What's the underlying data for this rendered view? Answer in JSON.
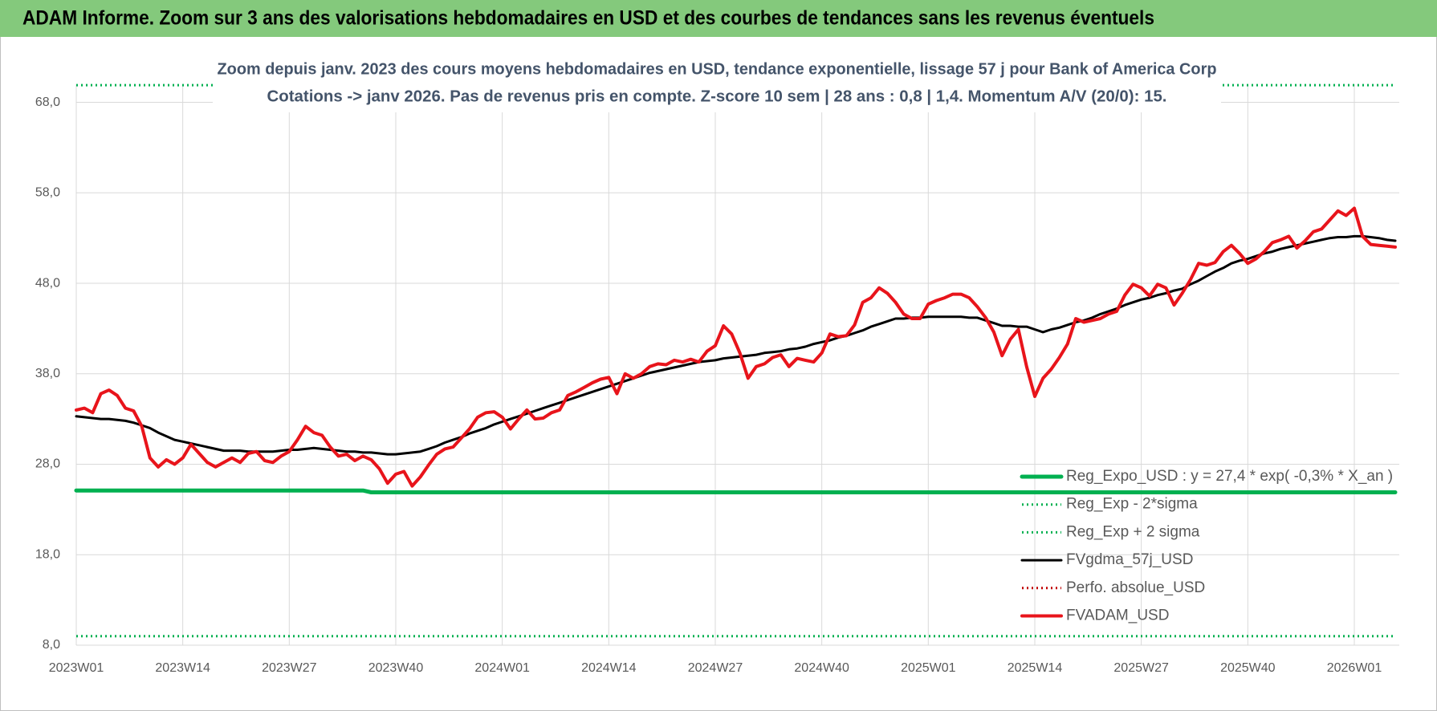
{
  "chart_data": {
    "type": "line",
    "title": "ADAM Informe. Zoom sur 3 ans des valorisations hebdomadaires en USD et des courbes de tendances sans les revenus éventuels",
    "subtitle": [
      "Zoom depuis janv. 2023 des cours moyens hebdomadaires en USD, tendance exponentielle, lissage 57 j pour Bank of America Corp",
      "Cotations -> janv 2026. Pas de revenus pris en compte. Z-score 10 sem  | 28 ans : 0,8 | 1,4. Momentum A/V (20/0): 15."
    ],
    "categories": [
      "2023W01",
      null,
      null,
      null,
      null,
      null,
      null,
      null,
      null,
      null,
      null,
      null,
      null,
      "2023W14",
      null,
      null,
      null,
      null,
      null,
      null,
      null,
      null,
      null,
      null,
      null,
      null,
      "2023W27",
      null,
      null,
      null,
      null,
      null,
      null,
      null,
      null,
      null,
      null,
      null,
      null,
      "2023W40",
      null,
      null,
      null,
      null,
      null,
      null,
      null,
      null,
      null,
      null,
      null,
      null,
      "2024W01",
      null,
      null,
      null,
      null,
      null,
      null,
      null,
      null,
      null,
      null,
      null,
      null,
      "2024W14",
      null,
      null,
      null,
      null,
      null,
      null,
      null,
      null,
      null,
      null,
      null,
      null,
      "2024W27",
      null,
      null,
      null,
      null,
      null,
      null,
      null,
      null,
      null,
      null,
      null,
      null,
      "2024W40",
      null,
      null,
      null,
      null,
      null,
      null,
      null,
      null,
      null,
      null,
      null,
      null,
      "2025W01",
      null,
      null,
      null,
      null,
      null,
      null,
      null,
      null,
      null,
      null,
      null,
      null,
      "2025W14",
      null,
      null,
      null,
      null,
      null,
      null,
      null,
      null,
      null,
      null,
      null,
      null,
      "2025W27",
      null,
      null,
      null,
      null,
      null,
      null,
      null,
      null,
      null,
      null,
      null,
      null,
      "2025W40",
      null,
      null,
      null,
      null,
      null,
      null,
      null,
      null,
      null,
      null,
      null,
      null,
      "2026W01",
      null,
      null,
      null,
      null,
      null
    ],
    "ylim": [
      8,
      70
    ],
    "yticks": [
      {
        "value": 8,
        "label": "8,0"
      },
      {
        "value": 18,
        "label": "18,0"
      },
      {
        "value": 28,
        "label": "28,0"
      },
      {
        "value": 38,
        "label": "38,0"
      },
      {
        "value": 48,
        "label": "48,0"
      },
      {
        "value": 58,
        "label": "58,0"
      },
      {
        "value": 68,
        "label": "68,0"
      }
    ],
    "grid": true,
    "legend": "bottom-right",
    "series": [
      {
        "name": "Reg_Expo_USD : y = 27,4 * exp( -0,3% *  X_an )",
        "color": "#00b050",
        "style": "solid",
        "width": 5,
        "values": [
          25.1,
          25.1,
          25.1,
          25.1,
          25.1,
          25.1,
          25.1,
          25.1,
          25.1,
          25.1,
          25.1,
          25.1,
          25.1,
          25.1,
          25.1,
          25.1,
          25.1,
          25.1,
          25.1,
          25.1,
          25.1,
          25.1,
          25.1,
          25.1,
          25.1,
          25.1,
          25.1,
          25.1,
          25.1,
          25.1,
          25.1,
          25.1,
          25.1,
          25.1,
          25.1,
          25.1,
          24.9,
          24.9,
          24.9,
          24.9,
          24.9,
          24.9,
          24.9,
          24.9,
          24.9,
          24.9,
          24.9,
          24.9,
          24.9,
          24.9,
          24.9,
          24.9,
          24.9,
          24.9,
          24.9,
          24.9,
          24.9,
          24.9,
          24.9,
          24.9,
          24.9,
          24.9,
          24.9,
          24.9,
          24.9,
          24.9,
          24.9,
          24.9,
          24.9,
          24.9,
          24.9,
          24.9,
          24.9,
          24.9,
          24.9,
          24.9,
          24.9,
          24.9,
          24.9,
          24.9,
          24.9,
          24.9,
          24.9,
          24.9,
          24.9,
          24.9,
          24.9,
          24.9,
          24.9,
          24.9,
          24.9,
          24.9,
          24.9,
          24.9,
          24.9,
          24.9,
          24.9,
          24.9,
          24.9,
          24.9,
          24.9,
          24.9,
          24.9,
          24.9,
          24.9,
          24.9,
          24.9,
          24.9,
          24.9,
          24.9,
          24.9,
          24.9,
          24.9,
          24.9,
          24.9,
          24.9,
          24.9,
          24.9,
          24.9,
          24.9,
          24.9,
          24.9,
          24.9,
          24.9,
          24.9,
          24.9,
          24.9,
          24.9,
          24.9,
          24.9,
          24.9,
          24.9,
          24.9,
          24.9,
          24.9,
          24.9,
          24.9,
          24.9,
          24.9,
          24.9,
          24.9,
          24.9,
          24.9,
          24.9,
          24.9,
          24.9,
          24.9,
          24.9,
          24.9,
          24.9,
          24.9,
          24.9,
          24.9,
          24.9,
          24.9,
          24.9,
          24.9,
          24.9,
          24.9,
          24.9,
          24.9,
          24.9
        ]
      },
      {
        "name": "Reg_Exp - 2*sigma",
        "color": "#00b050",
        "style": "dotted",
        "width": 3,
        "values": [
          9,
          9,
          9,
          9,
          9,
          9,
          9,
          9,
          9,
          9,
          9,
          9,
          9,
          9,
          9,
          9,
          9,
          9,
          9,
          9,
          9,
          9,
          9,
          9,
          9,
          9,
          9,
          9,
          9,
          9,
          9,
          9,
          9,
          9,
          9,
          9,
          9,
          9,
          9,
          9,
          9,
          9,
          9,
          9,
          9,
          9,
          9,
          9,
          9,
          9,
          9,
          9,
          9,
          9,
          9,
          9,
          9,
          9,
          9,
          9,
          9,
          9,
          9,
          9,
          9,
          9,
          9,
          9,
          9,
          9,
          9,
          9,
          9,
          9,
          9,
          9,
          9,
          9,
          9,
          9,
          9,
          9,
          9,
          9,
          9,
          9,
          9,
          9,
          9,
          9,
          9,
          9,
          9,
          9,
          9,
          9,
          9,
          9,
          9,
          9,
          9,
          9,
          9,
          9,
          9,
          9,
          9,
          9,
          9,
          9,
          9,
          9,
          9,
          9,
          9,
          9,
          9,
          9,
          9,
          9,
          9,
          9,
          9,
          9,
          9,
          9,
          9,
          9,
          9,
          9,
          9,
          9,
          9,
          9,
          9,
          9,
          9,
          9,
          9,
          9,
          9,
          9,
          9,
          9,
          9,
          9,
          9,
          9,
          9,
          9,
          9,
          9,
          9,
          9,
          9,
          9,
          9,
          9,
          9,
          9,
          9,
          9
        ]
      },
      {
        "name": "Reg_Exp + 2 sigma",
        "color": "#00b050",
        "style": "dotted",
        "width": 3,
        "values": [
          69.9,
          69.9,
          69.9,
          69.9,
          69.9,
          69.9,
          69.9,
          69.9,
          69.9,
          69.9,
          69.9,
          69.9,
          69.9,
          69.9,
          69.9,
          69.9,
          69.9,
          69.9,
          69.9,
          69.9,
          69.9,
          69.9,
          69.9,
          69.9,
          69.9,
          69.9,
          69.9,
          69.9,
          69.9,
          69.9,
          69.9,
          69.9,
          69.9,
          69.9,
          69.9,
          69.9,
          69.9,
          69.9,
          69.9,
          69.9,
          69.9,
          69.9,
          69.9,
          69.9,
          69.9,
          69.9,
          69.9,
          69.9,
          69.9,
          69.9,
          69.9,
          69.9,
          69.9,
          69.9,
          69.9,
          69.9,
          69.9,
          69.9,
          69.9,
          69.9,
          69.9,
          69.9,
          69.9,
          69.9,
          69.9,
          69.9,
          69.9,
          69.9,
          69.9,
          69.9,
          69.9,
          69.9,
          69.9,
          69.9,
          69.9,
          69.9,
          69.9,
          69.9,
          69.9,
          69.9,
          69.9,
          69.9,
          69.9,
          69.9,
          69.9,
          69.9,
          69.9,
          69.9,
          69.9,
          69.9,
          69.9,
          69.9,
          69.9,
          69.9,
          69.9,
          69.9,
          69.9,
          69.9,
          69.9,
          69.9,
          69.9,
          69.9,
          69.9,
          69.9,
          69.9,
          69.9,
          69.9,
          69.9,
          69.9,
          69.9,
          69.9,
          69.9,
          69.9,
          69.9,
          69.9,
          69.9,
          69.9,
          69.9,
          69.9,
          69.9,
          69.9,
          69.9,
          69.9,
          69.9,
          69.9,
          69.9,
          69.9,
          69.9,
          69.9,
          69.9,
          69.9,
          69.9,
          69.9,
          69.9,
          69.9,
          69.9,
          69.9,
          69.9,
          69.9,
          69.9,
          69.9,
          69.9,
          69.9,
          69.9,
          69.9,
          69.9,
          69.9,
          69.9,
          69.9,
          69.9,
          69.9,
          69.9,
          69.9,
          69.9,
          69.9,
          69.9,
          69.9,
          69.9,
          69.9,
          69.9,
          69.9,
          69.9
        ]
      },
      {
        "name": "FVgdma_57j_USD",
        "color": "#000000",
        "style": "solid",
        "width": 3,
        "values": [
          33.3,
          33.2,
          33.1,
          33.0,
          33.0,
          32.9,
          32.8,
          32.6,
          32.3,
          32.0,
          31.5,
          31.1,
          30.7,
          30.5,
          30.3,
          30.1,
          29.9,
          29.7,
          29.5,
          29.5,
          29.5,
          29.4,
          29.4,
          29.4,
          29.4,
          29.5,
          29.6,
          29.6,
          29.7,
          29.8,
          29.7,
          29.6,
          29.5,
          29.4,
          29.4,
          29.3,
          29.3,
          29.2,
          29.1,
          29.1,
          29.2,
          29.3,
          29.4,
          29.7,
          30.0,
          30.4,
          30.7,
          31.0,
          31.4,
          31.7,
          32.0,
          32.4,
          32.7,
          33.0,
          33.3,
          33.6,
          33.9,
          34.2,
          34.5,
          34.8,
          35.1,
          35.4,
          35.7,
          36.0,
          36.3,
          36.6,
          36.9,
          37.2,
          37.5,
          37.8,
          38.1,
          38.3,
          38.5,
          38.7,
          38.9,
          39.1,
          39.3,
          39.4,
          39.5,
          39.7,
          39.8,
          39.9,
          40.0,
          40.1,
          40.3,
          40.4,
          40.5,
          40.7,
          40.8,
          41.0,
          41.3,
          41.5,
          41.7,
          42.0,
          42.2,
          42.5,
          42.8,
          43.2,
          43.5,
          43.8,
          44.1,
          44.1,
          44.2,
          44.2,
          44.3,
          44.3,
          44.3,
          44.3,
          44.3,
          44.2,
          44.2,
          43.9,
          43.6,
          43.3,
          43.3,
          43.2,
          43.2,
          42.9,
          42.6,
          42.9,
          43.1,
          43.4,
          43.7,
          43.9,
          44.2,
          44.6,
          44.9,
          45.2,
          45.6,
          45.9,
          46.2,
          46.4,
          46.7,
          46.9,
          47.2,
          47.4,
          47.9,
          48.3,
          48.8,
          49.3,
          49.7,
          50.2,
          50.5,
          50.7,
          51.0,
          51.3,
          51.5,
          51.8,
          52.0,
          52.2,
          52.4,
          52.6,
          52.8,
          53.0,
          53.1,
          53.1,
          53.2,
          53.2,
          53.1,
          53.0,
          52.8,
          52.7
        ]
      },
      {
        "name": "Perfo. absolue_USD",
        "color": "#c00000",
        "style": "dotted",
        "width": 3
      },
      {
        "name": "FVADAM_USD",
        "color": "#e8141b",
        "style": "solid",
        "width": 4,
        "values": [
          34.0,
          34.2,
          33.7,
          35.8,
          36.2,
          35.6,
          34.2,
          33.9,
          32.2,
          28.7,
          27.7,
          28.5,
          28.0,
          28.7,
          30.2,
          29.2,
          28.2,
          27.7,
          28.2,
          28.7,
          28.2,
          29.2,
          29.4,
          28.4,
          28.2,
          28.9,
          29.4,
          30.7,
          32.2,
          31.5,
          31.2,
          29.9,
          28.9,
          29.1,
          28.4,
          28.9,
          28.5,
          27.5,
          25.9,
          26.9,
          27.2,
          25.6,
          26.6,
          27.9,
          29.1,
          29.7,
          29.9,
          30.9,
          31.9,
          33.2,
          33.7,
          33.8,
          33.2,
          31.9,
          33.0,
          34.0,
          33.0,
          33.1,
          33.7,
          34.0,
          35.6,
          36.0,
          36.5,
          37.0,
          37.4,
          37.6,
          35.8,
          38.0,
          37.5,
          38.0,
          38.8,
          39.1,
          39.0,
          39.5,
          39.3,
          39.6,
          39.3,
          40.5,
          41.1,
          43.3,
          42.4,
          40.3,
          37.5,
          38.8,
          39.1,
          39.8,
          40.1,
          38.8,
          39.7,
          39.5,
          39.3,
          40.3,
          42.4,
          42.1,
          42.2,
          43.4,
          45.9,
          46.4,
          47.5,
          46.9,
          45.9,
          44.6,
          44.1,
          44.1,
          45.7,
          46.1,
          46.4,
          46.8,
          46.8,
          46.4,
          45.4,
          44.2,
          42.6,
          40.0,
          41.8,
          42.9,
          38.8,
          35.5,
          37.5,
          38.5,
          39.8,
          41.3,
          44.1,
          43.7,
          43.9,
          44.1,
          44.6,
          44.9,
          46.7,
          47.9,
          47.5,
          46.6,
          47.9,
          47.5,
          45.6,
          46.9,
          48.4,
          50.2,
          50.0,
          50.3,
          51.5,
          52.2,
          51.3,
          50.2,
          50.7,
          51.5,
          52.5,
          52.8,
          53.2,
          51.9,
          52.7,
          53.7,
          54.0,
          55.0,
          56.0,
          55.5,
          56.3,
          53.2,
          52.3,
          52.2,
          52.1,
          52.0
        ]
      }
    ]
  }
}
